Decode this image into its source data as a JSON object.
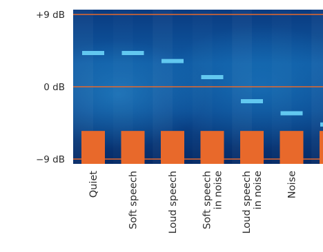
{
  "chart_data": {
    "type": "bar",
    "y_ticks": [
      {
        "value": 9,
        "label": "+9 dB"
      },
      {
        "value": 0,
        "label": "0 dB"
      },
      {
        "value": -9,
        "label": "−9 dB"
      }
    ],
    "ylim": [
      -10,
      10
    ],
    "categories": [
      [
        "Quiet"
      ],
      [
        "Soft speech"
      ],
      [
        "Loud speech"
      ],
      [
        "Soft speech",
        "in noise"
      ],
      [
        "Loud speech",
        "in noise"
      ],
      [
        "Noise"
      ],
      [
        ""
      ]
    ],
    "series": [
      {
        "values": [
          -5.5,
          -5.5,
          -5.5,
          -5.5,
          -5.5,
          -5.5,
          -5.5
        ]
      },
      {
        "values": [
          4.2,
          4.2,
          3.2,
          1.2,
          -1.8,
          -3.3,
          -4.7
        ]
      }
    ],
    "colors": {
      "bar": "#e8692b",
      "marker": "#62c8f0",
      "gridline": "#e8692b",
      "bg_dark": "#062a66",
      "bg_mid": "#0d4f99",
      "bg_light": "#1f86c8",
      "axis_text": "#2a2a2a"
    },
    "grid": true
  }
}
